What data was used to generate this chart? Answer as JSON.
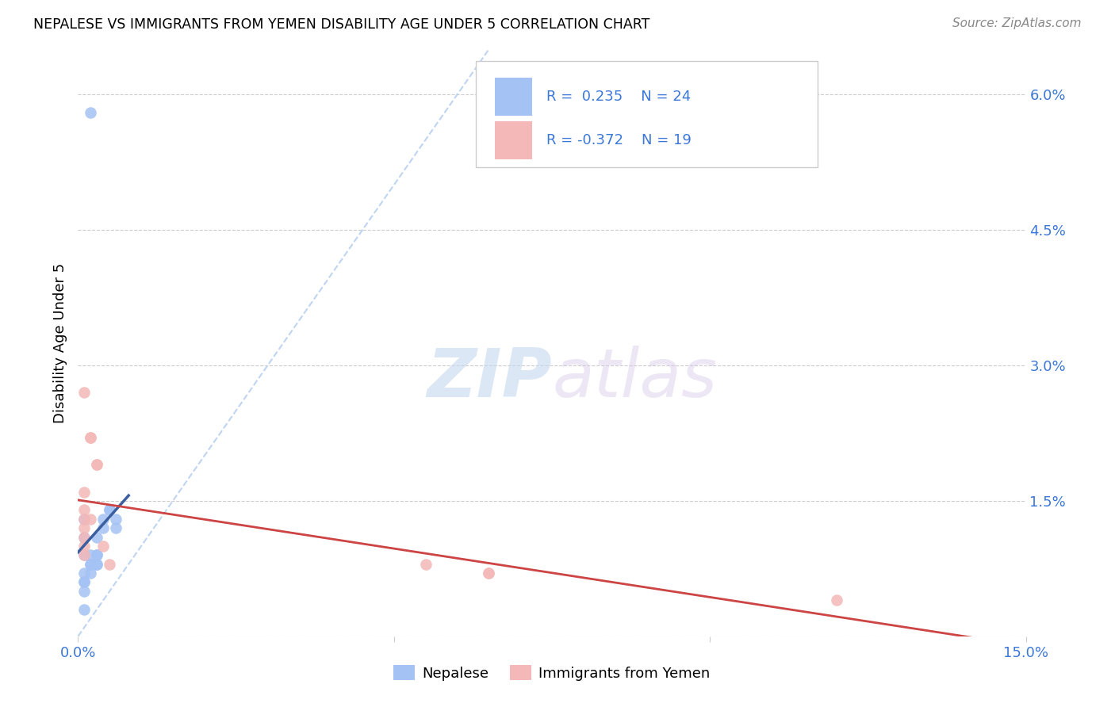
{
  "title": "NEPALESE VS IMMIGRANTS FROM YEMEN DISABILITY AGE UNDER 5 CORRELATION CHART",
  "source": "Source: ZipAtlas.com",
  "ylabel": "Disability Age Under 5",
  "xlim": [
    0,
    0.15
  ],
  "ylim": [
    0,
    0.065
  ],
  "xticks": [
    0.0,
    0.05,
    0.1,
    0.15
  ],
  "xtick_labels": [
    "0.0%",
    "",
    "",
    "15.0%"
  ],
  "yticks": [
    0.0,
    0.015,
    0.03,
    0.045,
    0.06
  ],
  "ytick_labels": [
    "",
    "1.5%",
    "3.0%",
    "4.5%",
    "6.0%"
  ],
  "legend_r_blue": "R =  0.235",
  "legend_n_blue": "N = 24",
  "legend_r_pink": "R = -0.372",
  "legend_n_pink": "N = 19",
  "legend_label_blue": "Nepalese",
  "legend_label_pink": "Immigrants from Yemen",
  "blue_color": "#a4c2f4",
  "pink_color": "#f4b8b8",
  "blue_line_color": "#3c5fa0",
  "pink_line_color": "#cc4444",
  "diagonal_color": "#b8d0f0",
  "watermark_zip": "ZIP",
  "watermark_atlas": "atlas",
  "nepalese_x": [
    0.002,
    0.003,
    0.001,
    0.001,
    0.001,
    0.002,
    0.002,
    0.003,
    0.004,
    0.005,
    0.005,
    0.006,
    0.006,
    0.004,
    0.003,
    0.003,
    0.003,
    0.002,
    0.002,
    0.001,
    0.001,
    0.001,
    0.001,
    0.001
  ],
  "nepalese_y": [
    0.058,
    0.009,
    0.013,
    0.011,
    0.009,
    0.009,
    0.008,
    0.011,
    0.013,
    0.014,
    0.014,
    0.012,
    0.013,
    0.012,
    0.009,
    0.008,
    0.008,
    0.008,
    0.007,
    0.007,
    0.006,
    0.005,
    0.006,
    0.003
  ],
  "yemen_x": [
    0.001,
    0.002,
    0.002,
    0.003,
    0.003,
    0.001,
    0.001,
    0.001,
    0.001,
    0.002,
    0.004,
    0.005,
    0.055,
    0.065,
    0.065,
    0.12,
    0.001,
    0.001,
    0.001
  ],
  "yemen_y": [
    0.027,
    0.022,
    0.022,
    0.019,
    0.019,
    0.016,
    0.014,
    0.013,
    0.012,
    0.013,
    0.01,
    0.008,
    0.008,
    0.007,
    0.007,
    0.004,
    0.009,
    0.01,
    0.011
  ]
}
